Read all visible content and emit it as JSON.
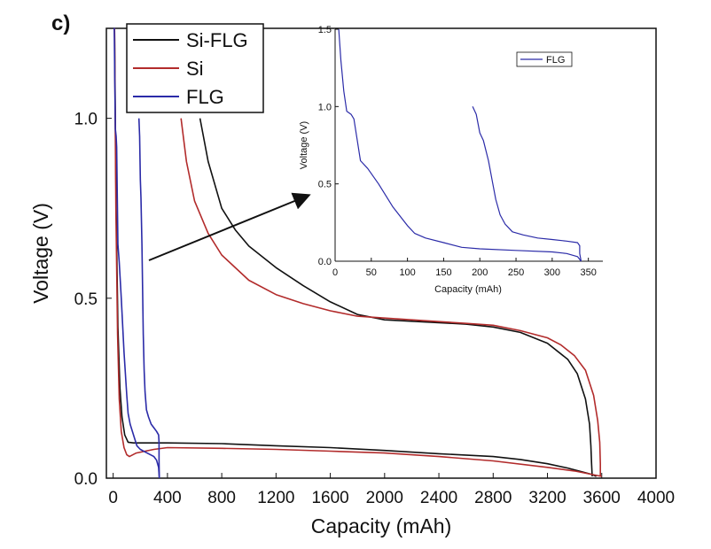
{
  "panel_label": "c)",
  "colors": {
    "Si-FLG": "#111111",
    "Si": "#b22b2b",
    "FLG": "#2b2ba8"
  },
  "chart_data": [
    {
      "type": "line",
      "xlabel": "Capacity (mAh)",
      "ylabel": "Voltage (V)",
      "xlim": [
        -50,
        4000
      ],
      "ylim": [
        0,
        1.25
      ],
      "xticks": [
        0,
        400,
        800,
        1200,
        1600,
        2000,
        2400,
        2800,
        3200,
        3600,
        4000
      ],
      "yticks": [
        0.0,
        0.5,
        1.0
      ],
      "ytick_labels": [
        "0.0",
        "0.5",
        "1.0"
      ],
      "legend_position": "top-left",
      "series": [
        {
          "name": "Si-FLG",
          "segments": [
            [
              [
                10,
                1.25
              ],
              [
                22,
                0.75
              ],
              [
                35,
                0.42
              ],
              [
                50,
                0.25
              ],
              [
                65,
                0.17
              ],
              [
                85,
                0.12
              ],
              [
                110,
                0.1
              ],
              [
                150,
                0.098
              ],
              [
                400,
                0.098
              ],
              [
                800,
                0.096
              ],
              [
                1200,
                0.09
              ],
              [
                1600,
                0.085
              ],
              [
                2000,
                0.077
              ],
              [
                2400,
                0.068
              ],
              [
                2800,
                0.06
              ],
              [
                3000,
                0.052
              ],
              [
                3200,
                0.04
              ],
              [
                3350,
                0.028
              ],
              [
                3450,
                0.018
              ],
              [
                3530,
                0.01
              ],
              [
                3560,
                0.005
              ]
            ],
            [
              [
                3530,
                0.005
              ],
              [
                3525,
                0.04
              ],
              [
                3520,
                0.09
              ],
              [
                3510,
                0.15
              ],
              [
                3480,
                0.22
              ],
              [
                3420,
                0.29
              ],
              [
                3350,
                0.33
              ],
              [
                3200,
                0.375
              ],
              [
                3000,
                0.405
              ],
              [
                2800,
                0.42
              ],
              [
                2600,
                0.428
              ],
              [
                2400,
                0.432
              ],
              [
                2000,
                0.44
              ],
              [
                1800,
                0.455
              ],
              [
                1600,
                0.49
              ],
              [
                1400,
                0.535
              ],
              [
                1200,
                0.585
              ],
              [
                1000,
                0.645
              ],
              [
                900,
                0.69
              ],
              [
                800,
                0.75
              ],
              [
                700,
                0.88
              ],
              [
                640,
                1.0
              ]
            ]
          ]
        },
        {
          "name": "Si",
          "segments": [
            [
              [
                10,
                1.25
              ],
              [
                20,
                0.75
              ],
              [
                32,
                0.4
              ],
              [
                45,
                0.22
              ],
              [
                60,
                0.13
              ],
              [
                80,
                0.085
              ],
              [
                100,
                0.065
              ],
              [
                120,
                0.06
              ],
              [
                170,
                0.07
              ],
              [
                300,
                0.08
              ],
              [
                400,
                0.085
              ],
              [
                800,
                0.083
              ],
              [
                1200,
                0.08
              ],
              [
                1600,
                0.075
              ],
              [
                2000,
                0.07
              ],
              [
                2400,
                0.06
              ],
              [
                2800,
                0.048
              ],
              [
                3200,
                0.03
              ],
              [
                3400,
                0.02
              ],
              [
                3600,
                0.005
              ]
            ],
            [
              [
                3590,
                0.005
              ],
              [
                3590,
                0.04
              ],
              [
                3585,
                0.1
              ],
              [
                3570,
                0.16
              ],
              [
                3540,
                0.23
              ],
              [
                3480,
                0.3
              ],
              [
                3400,
                0.34
              ],
              [
                3300,
                0.37
              ],
              [
                3200,
                0.39
              ],
              [
                3000,
                0.41
              ],
              [
                2800,
                0.425
              ],
              [
                2600,
                0.43
              ],
              [
                2400,
                0.435
              ],
              [
                2200,
                0.44
              ],
              [
                2000,
                0.445
              ],
              [
                1800,
                0.45
              ],
              [
                1600,
                0.465
              ],
              [
                1400,
                0.485
              ],
              [
                1200,
                0.51
              ],
              [
                1000,
                0.55
              ],
              [
                800,
                0.62
              ],
              [
                700,
                0.68
              ],
              [
                600,
                0.77
              ],
              [
                540,
                0.88
              ],
              [
                500,
                1.0
              ]
            ]
          ]
        },
        {
          "name": "FLG",
          "segments": [
            [
              [
                5,
                1.5
              ],
              [
                8,
                1.3
              ],
              [
                12,
                1.1
              ],
              [
                16,
                0.97
              ],
              [
                22,
                0.95
              ],
              [
                26,
                0.92
              ],
              [
                30,
                0.8
              ],
              [
                35,
                0.65
              ],
              [
                45,
                0.6
              ],
              [
                60,
                0.5
              ],
              [
                80,
                0.35
              ],
              [
                100,
                0.23
              ],
              [
                110,
                0.18
              ],
              [
                125,
                0.15
              ],
              [
                150,
                0.12
              ],
              [
                175,
                0.09
              ],
              [
                200,
                0.08
              ],
              [
                250,
                0.07
              ],
              [
                300,
                0.06
              ],
              [
                320,
                0.05
              ],
              [
                335,
                0.03
              ],
              [
                340,
                0.0
              ]
            ],
            [
              [
                340,
                0.0
              ],
              [
                338,
                0.05
              ],
              [
                338,
                0.1
              ],
              [
                335,
                0.12
              ],
              [
                320,
                0.13
              ],
              [
                300,
                0.14
              ],
              [
                280,
                0.15
              ],
              [
                260,
                0.17
              ],
              [
                245,
                0.19
              ],
              [
                235,
                0.24
              ],
              [
                228,
                0.3
              ],
              [
                222,
                0.4
              ],
              [
                218,
                0.5
              ],
              [
                212,
                0.65
              ],
              [
                205,
                0.78
              ],
              [
                200,
                0.83
              ],
              [
                195,
                0.95
              ],
              [
                190,
                1.0
              ]
            ]
          ]
        }
      ]
    },
    {
      "type": "line",
      "xlabel": "Capacity (mAh)",
      "ylabel": "Voltage (V)",
      "xlim": [
        0,
        370
      ],
      "ylim": [
        0,
        1.5
      ],
      "xticks": [
        0,
        50,
        100,
        150,
        200,
        250,
        300,
        350
      ],
      "yticks": [
        0.0,
        0.5,
        1.0,
        1.5
      ],
      "ytick_labels": [
        "0.0",
        "0.5",
        "1.0",
        "1.5"
      ],
      "legend_position": "top-right",
      "series": [
        {
          "name": "FLG",
          "segments": [
            [
              [
                5,
                1.5
              ],
              [
                8,
                1.3
              ],
              [
                12,
                1.1
              ],
              [
                16,
                0.97
              ],
              [
                22,
                0.95
              ],
              [
                26,
                0.92
              ],
              [
                30,
                0.8
              ],
              [
                35,
                0.65
              ],
              [
                45,
                0.6
              ],
              [
                60,
                0.5
              ],
              [
                80,
                0.35
              ],
              [
                100,
                0.23
              ],
              [
                110,
                0.18
              ],
              [
                125,
                0.15
              ],
              [
                150,
                0.12
              ],
              [
                175,
                0.09
              ],
              [
                200,
                0.08
              ],
              [
                250,
                0.07
              ],
              [
                300,
                0.06
              ],
              [
                320,
                0.05
              ],
              [
                335,
                0.03
              ],
              [
                340,
                0.0
              ]
            ],
            [
              [
                340,
                0.0
              ],
              [
                338,
                0.05
              ],
              [
                338,
                0.1
              ],
              [
                335,
                0.12
              ],
              [
                320,
                0.13
              ],
              [
                300,
                0.14
              ],
              [
                280,
                0.15
              ],
              [
                260,
                0.17
              ],
              [
                245,
                0.19
              ],
              [
                235,
                0.24
              ],
              [
                228,
                0.3
              ],
              [
                222,
                0.4
              ],
              [
                218,
                0.5
              ],
              [
                212,
                0.65
              ],
              [
                205,
                0.78
              ],
              [
                200,
                0.83
              ],
              [
                195,
                0.95
              ],
              [
                190,
                1.0
              ]
            ]
          ]
        }
      ]
    }
  ]
}
